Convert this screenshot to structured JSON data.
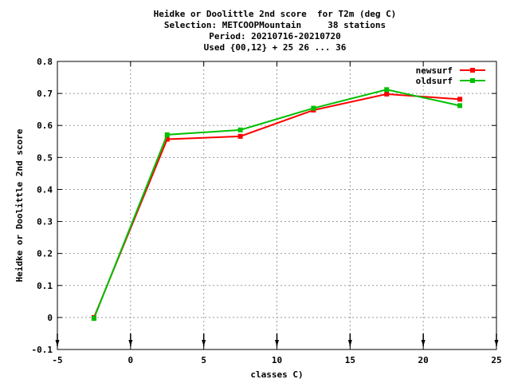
{
  "title_lines": [
    "Heidke or Doolittle 2nd score  for T2m (deg C)",
    "Selection: METCOOPMountain     38 stations",
    "Period: 20210716-20210720",
    "Used {00,12} + 25 26 ... 36"
  ],
  "chart_data": {
    "type": "line",
    "xlabel": "classes C)",
    "ylabel": "Heidke or Doolittle 2nd score",
    "xlim": [
      -5,
      25
    ],
    "ylim": [
      -0.1,
      0.8
    ],
    "xticks": [
      -5,
      0,
      5,
      10,
      15,
      20,
      25
    ],
    "yticks": [
      -0.1,
      0,
      0.1,
      0.2,
      0.3,
      0.4,
      0.5,
      0.6,
      0.7,
      0.8
    ],
    "xtick_labels": [
      "-5",
      "0",
      "5",
      "10",
      "15",
      "20",
      "25"
    ],
    "ytick_labels": [
      "-0.1",
      "0",
      "0.1",
      "0.2",
      "0.3",
      "0.4",
      "0.5",
      "0.6",
      "0.7",
      "0.8"
    ],
    "grid": true,
    "legend_position": "top-right",
    "series": [
      {
        "name": "newsurf",
        "color": "#ff0000",
        "x": [
          -2.5,
          2.5,
          7.5,
          12.5,
          17.5,
          22.5
        ],
        "y": [
          0.0,
          0.557,
          0.566,
          0.648,
          0.698,
          0.682
        ]
      },
      {
        "name": "oldsurf",
        "color": "#00c000",
        "x": [
          -2.5,
          2.5,
          7.5,
          12.5,
          17.5,
          22.5
        ],
        "y": [
          -0.003,
          0.571,
          0.586,
          0.654,
          0.712,
          0.662
        ]
      }
    ],
    "bottom_arrow_markers_x": [
      -5,
      0,
      5,
      10,
      15,
      20,
      25
    ]
  }
}
